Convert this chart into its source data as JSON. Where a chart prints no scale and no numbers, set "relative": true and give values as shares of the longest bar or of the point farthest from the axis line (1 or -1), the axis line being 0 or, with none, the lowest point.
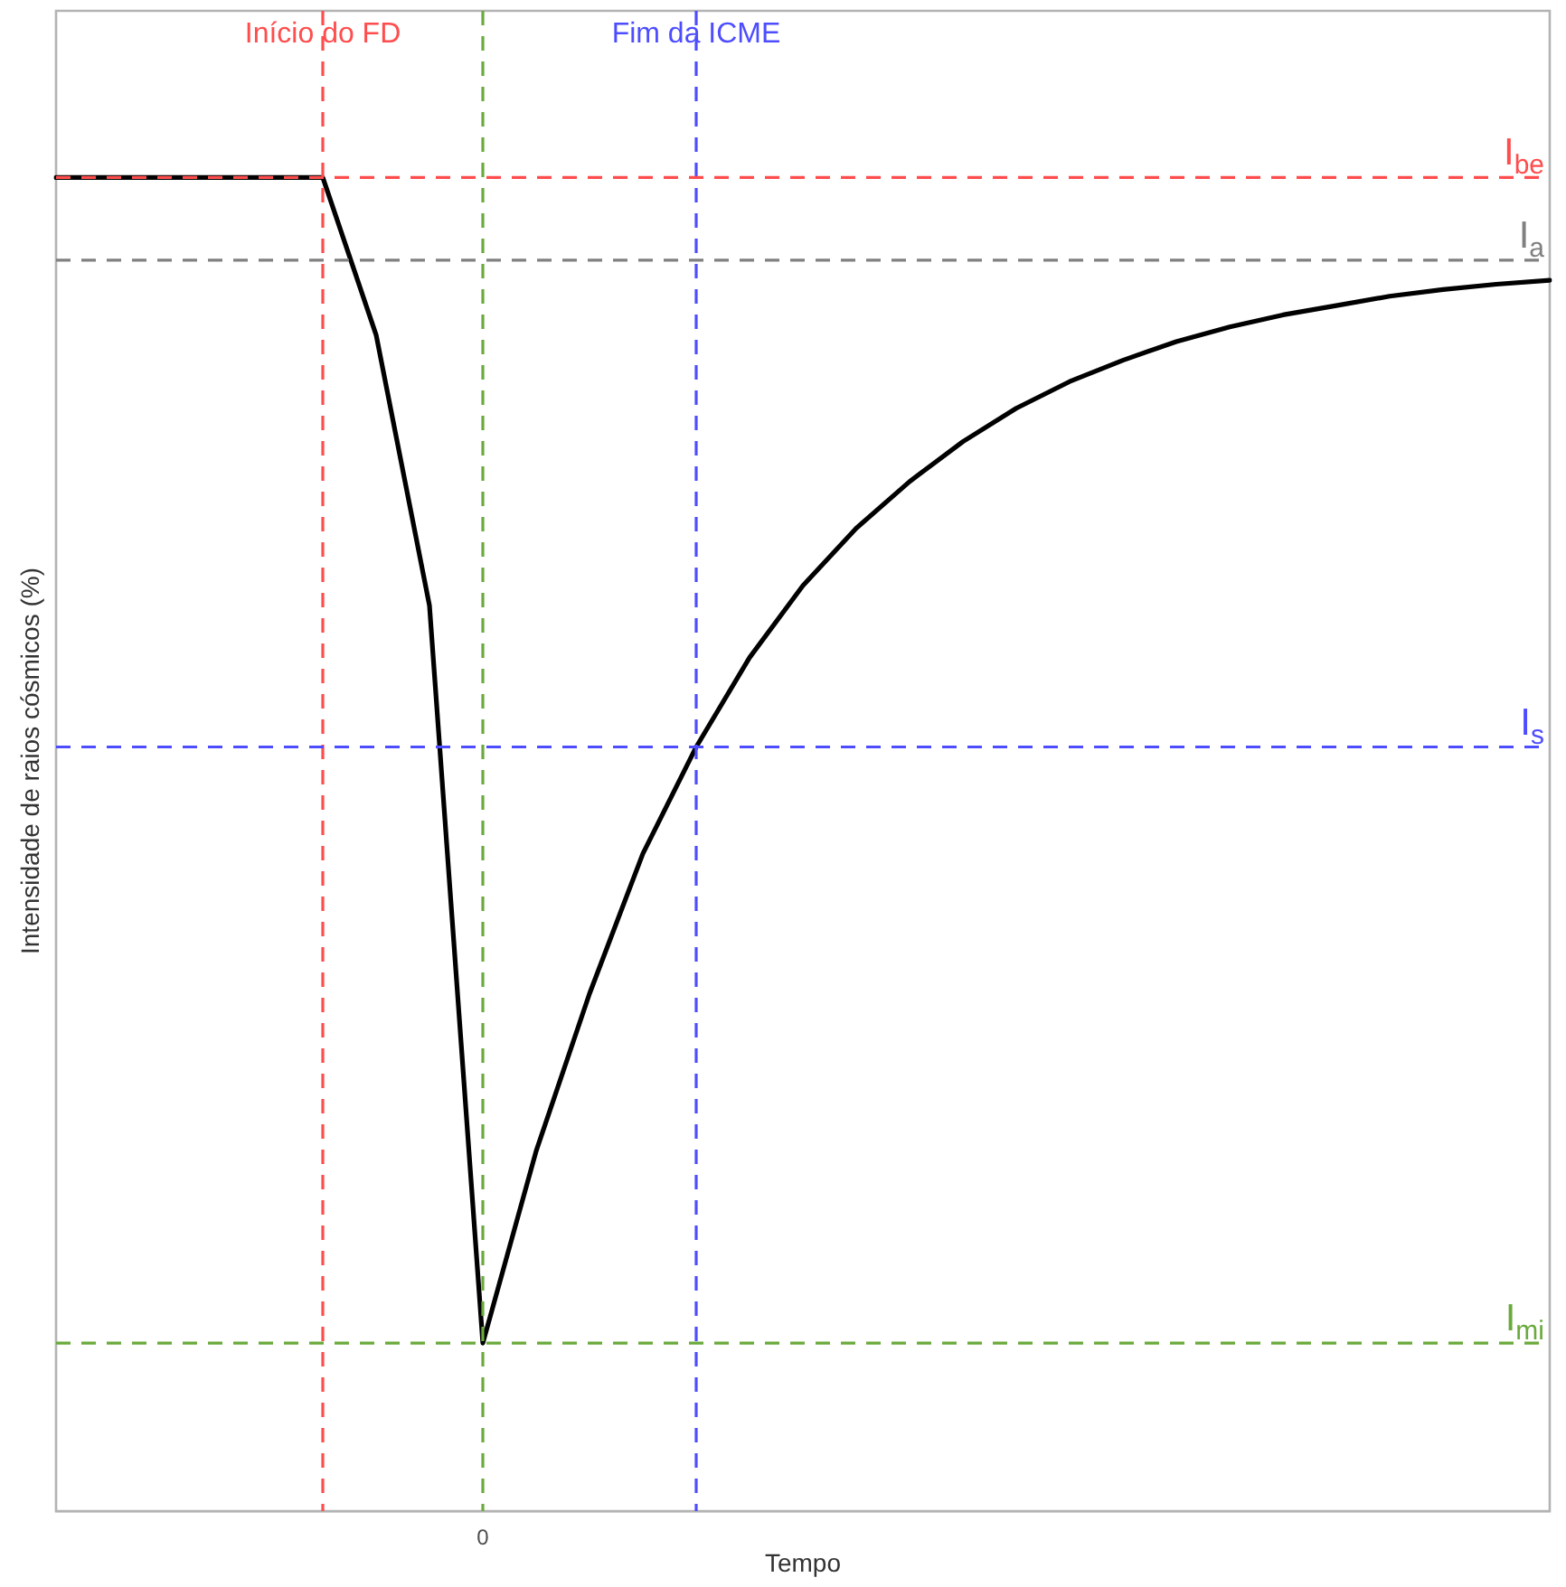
{
  "chart_data": {
    "type": "line",
    "xlabel": "Tempo",
    "ylabel": "Intensidade de raios cósmicos (%)",
    "relative": true,
    "categories": [
      null,
      null,
      null,
      null,
      null,
      null,
      null,
      null,
      null,
      null,
      null,
      null,
      null,
      null,
      null,
      null,
      null,
      null,
      null,
      null,
      null,
      null,
      null,
      null,
      null,
      null,
      null,
      null,
      null
    ],
    "series": [
      {
        "color": "#000000",
        "values": [
          1,
          1,
          1,
          1,
          1,
          1,
          0.882,
          0.679,
          0.126,
          0.27,
          0.388,
          0.493,
          0.573,
          0.64,
          0.694,
          0.737,
          0.772,
          0.802,
          0.827,
          0.847,
          0.863,
          0.877,
          0.888,
          0.897,
          0.904,
          0.911,
          0.916,
          0.92,
          0.923
        ]
      }
    ],
    "annotations": [
      "Início do FD",
      "Fim da ICME",
      "0"
    ],
    "ref_lines": [
      {
        "axis": "y",
        "value": 1,
        "label": "I$_{be}$",
        "color": "#ff4d4d",
        "line_style": "dashed"
      },
      {
        "axis": "y",
        "value": 0.938,
        "label": "I$_{a}$",
        "color": "#808080",
        "line_style": "dashed"
      },
      {
        "axis": "y",
        "value": 0.573,
        "label": "I$_{s}$",
        "color": "#4d4dff",
        "line_style": "dashed"
      },
      {
        "axis": "y",
        "value": 0.126,
        "label": "I$_{mi}$",
        "color": "#6aaa3c",
        "line_style": "dashed"
      }
    ]
  }
}
